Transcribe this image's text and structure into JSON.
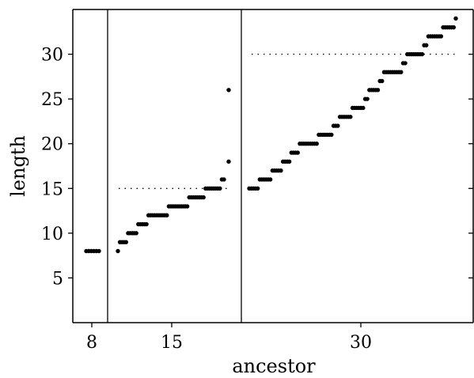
{
  "chart_data": {
    "type": "scatter",
    "xlabel": "ancestor",
    "ylabel": "length",
    "ylim": [
      0,
      35
    ],
    "y_ticks": [
      "5",
      "10",
      "15",
      "20",
      "25",
      "30"
    ],
    "x_ticks": [
      "8",
      "15",
      "30"
    ],
    "grid": false,
    "legend": "none",
    "groups": [
      {
        "ancestor": 8,
        "reference_length": null,
        "segments": [
          {
            "y": 8,
            "count": 6
          }
        ],
        "outliers": []
      },
      {
        "ancestor": 15,
        "reference_length": 15,
        "segments": [
          {
            "y": 8,
            "count": 1
          },
          {
            "y": 9,
            "count": 4
          },
          {
            "y": 10,
            "count": 5
          },
          {
            "y": 11,
            "count": 5
          },
          {
            "y": 12,
            "count": 10
          },
          {
            "y": 13,
            "count": 10
          },
          {
            "y": 14,
            "count": 8
          },
          {
            "y": 15,
            "count": 8
          },
          {
            "y": 16,
            "count": 2
          }
        ],
        "outliers": [
          {
            "y": 18
          },
          {
            "y": 26
          }
        ]
      },
      {
        "ancestor": 30,
        "reference_length": 30,
        "segments": [
          {
            "y": 15,
            "count": 5
          },
          {
            "y": 16,
            "count": 6
          },
          {
            "y": 17,
            "count": 5
          },
          {
            "y": 18,
            "count": 4
          },
          {
            "y": 19,
            "count": 4
          },
          {
            "y": 20,
            "count": 9
          },
          {
            "y": 21,
            "count": 7
          },
          {
            "y": 22,
            "count": 3
          },
          {
            "y": 23,
            "count": 6
          },
          {
            "y": 24,
            "count": 6
          },
          {
            "y": 25,
            "count": 2
          },
          {
            "y": 26,
            "count": 5
          },
          {
            "y": 27,
            "count": 2
          },
          {
            "y": 28,
            "count": 9
          },
          {
            "y": 29,
            "count": 2
          },
          {
            "y": 30,
            "count": 8
          },
          {
            "y": 31,
            "count": 2
          },
          {
            "y": 32,
            "count": 7
          },
          {
            "y": 33,
            "count": 6
          },
          {
            "y": 34,
            "count": 1
          }
        ],
        "outliers": []
      }
    ]
  }
}
